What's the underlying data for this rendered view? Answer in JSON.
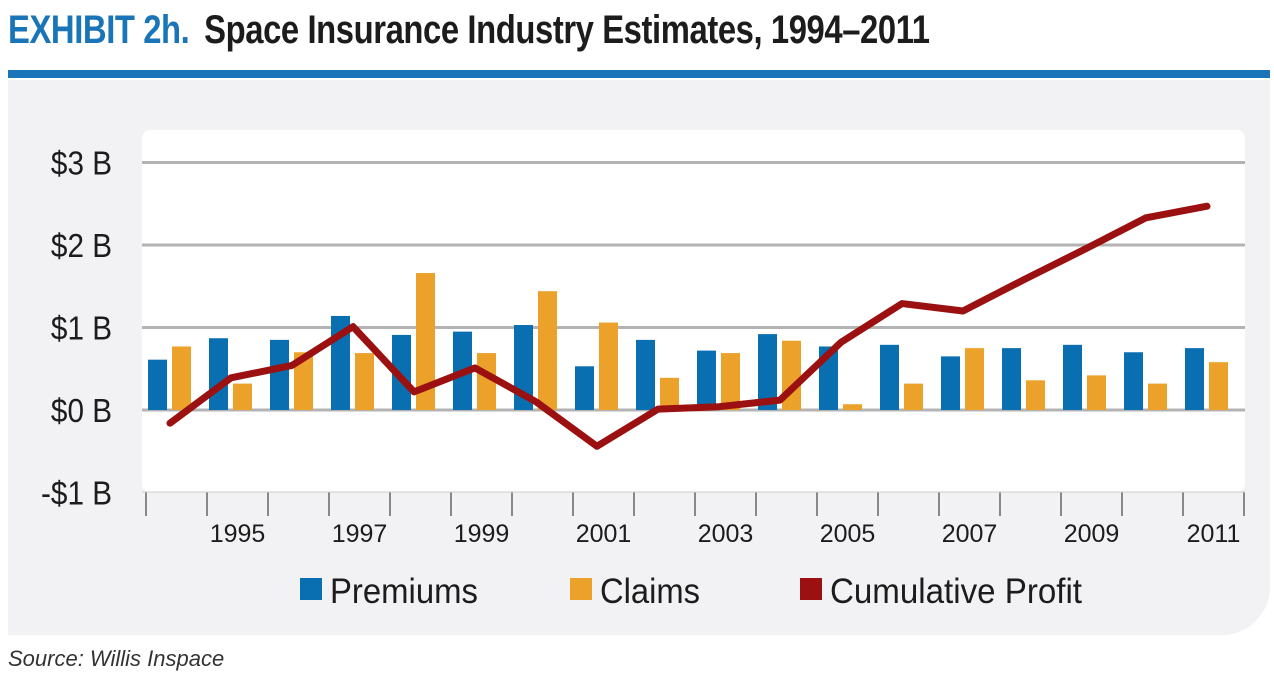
{
  "header": {
    "exhibit": "EXHIBIT 2h.",
    "title": "Space Insurance Industry Estimates, 1994–2011"
  },
  "source": "Source: Willis Inspace",
  "chart_data": {
    "type": "bar",
    "categories": [
      "1994",
      "1995",
      "1996",
      "1997",
      "1998",
      "1999",
      "2000",
      "2001",
      "2002",
      "2003",
      "2004",
      "2005",
      "2006",
      "2007",
      "2008",
      "2009",
      "2010",
      "2011"
    ],
    "x_tick_labels": [
      "1995",
      "1997",
      "1999",
      "2001",
      "2003",
      "2005",
      "2007",
      "2009",
      "2011"
    ],
    "y_ticks": [
      {
        "value": 3,
        "label": "$3 B"
      },
      {
        "value": 2,
        "label": "$2 B"
      },
      {
        "value": 1,
        "label": "$1 B"
      },
      {
        "value": 0,
        "label": "$0 B"
      },
      {
        "value": -1,
        "label": "-$1 B"
      }
    ],
    "ylim": [
      -1,
      3
    ],
    "grid": true,
    "legend_position": "bottom",
    "series": [
      {
        "name": "Premiums",
        "type": "bar",
        "color": "#0a6fb0",
        "values": [
          0.61,
          0.87,
          0.85,
          1.14,
          0.91,
          0.95,
          1.03,
          0.53,
          0.85,
          0.72,
          0.92,
          0.77,
          0.79,
          0.65,
          0.75,
          0.79,
          0.7,
          0.75
        ]
      },
      {
        "name": "Claims",
        "type": "bar",
        "color": "#eca22a",
        "values": [
          0.77,
          0.32,
          0.7,
          0.69,
          1.66,
          0.69,
          1.44,
          1.06,
          0.39,
          0.69,
          0.84,
          0.07,
          0.32,
          0.75,
          0.36,
          0.42,
          0.32,
          0.58
        ]
      },
      {
        "name": "Cumulative Profit",
        "type": "line",
        "color": "#9b1010",
        "values": [
          -0.16,
          0.39,
          0.54,
          1.01,
          0.22,
          0.51,
          0.1,
          -0.44,
          0.01,
          0.04,
          0.12,
          0.82,
          1.29,
          1.2,
          1.58,
          1.95,
          2.33,
          2.47
        ]
      }
    ]
  }
}
